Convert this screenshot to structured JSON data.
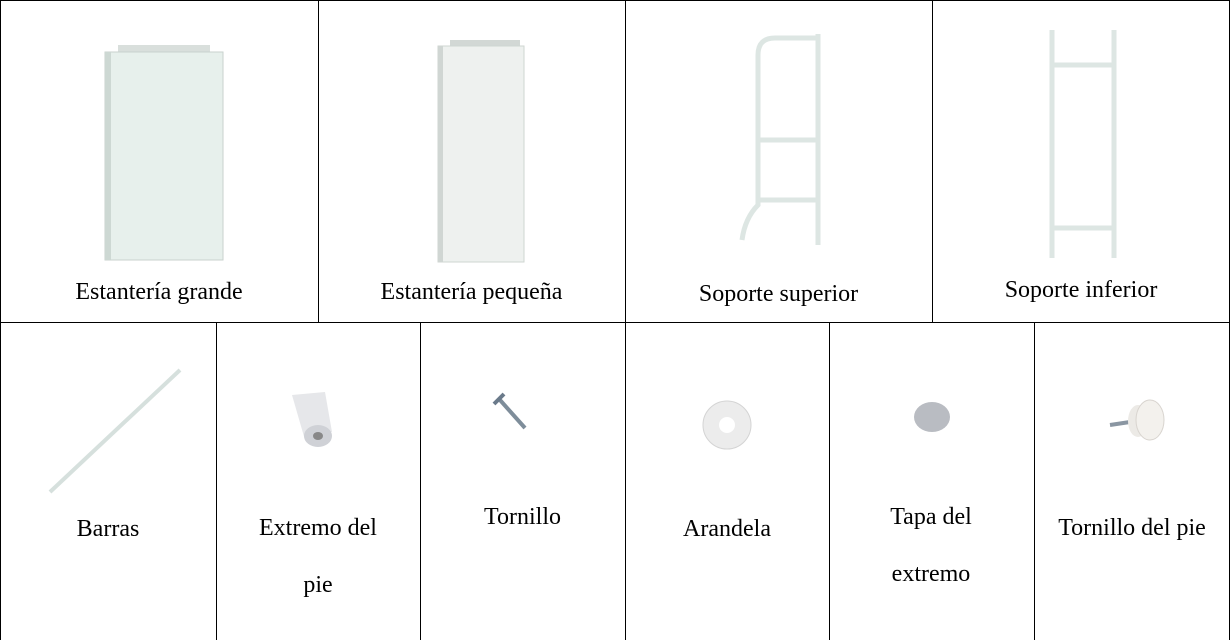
{
  "parts": {
    "top": [
      "Estantería grande",
      "Estantería pequeña",
      "Soporte superior",
      "Soporte inferior"
    ],
    "bottom": [
      "Barras",
      "Extremo del pie",
      "Tornillo",
      "Arandela",
      "Tapa del extremo",
      "Tornillo del pie"
    ]
  }
}
